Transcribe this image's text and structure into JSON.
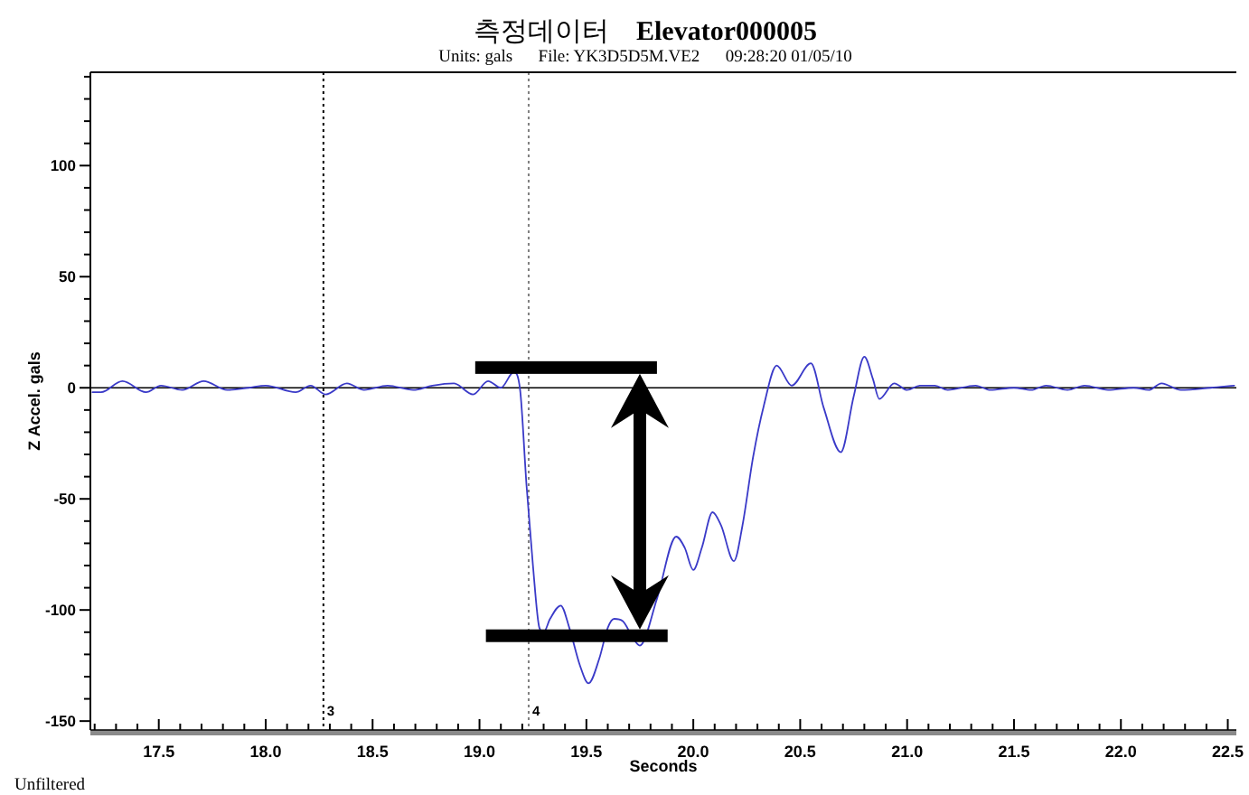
{
  "chart_data": {
    "type": "line",
    "title": "측정데이터    Elevator000005",
    "subtitle": "Units: gals      File: YK3D5D5M.VE2      09:28:20 01/05/10",
    "xlabel": "Seconds",
    "ylabel": "Z Accel. gals",
    "annotations": [
      "Unfiltered",
      {
        "text": "3",
        "x": 18.27,
        "y": -145
      },
      {
        "text": "4",
        "x": 19.23,
        "y": -145
      }
    ],
    "x": [
      17.19,
      17.23,
      17.33,
      17.44,
      17.51,
      17.61,
      17.71,
      17.82,
      17.92,
      18.0,
      18.14,
      18.21,
      18.28,
      18.38,
      18.46,
      18.57,
      18.69,
      18.78,
      18.88,
      18.97,
      19.04,
      19.1,
      19.16,
      19.19,
      19.22,
      19.25,
      19.28,
      19.3,
      19.33,
      19.38,
      19.42,
      19.47,
      19.51,
      19.56,
      19.6,
      19.63,
      19.67,
      19.72,
      19.75,
      19.83,
      19.92,
      19.96,
      20.0,
      20.04,
      20.09,
      20.13,
      20.19,
      20.23,
      20.28,
      20.33,
      20.39,
      20.46,
      20.55,
      20.61,
      20.69,
      20.75,
      20.8,
      20.84,
      20.87,
      20.94,
      21.0,
      21.06,
      21.13,
      21.19,
      21.32,
      21.39,
      21.5,
      21.58,
      21.65,
      21.75,
      21.83,
      21.94,
      22.06,
      22.13,
      22.19,
      22.28,
      22.42,
      22.53
    ],
    "series": [
      {
        "color": "#3a3ac8",
        "values": [
          -2,
          -2,
          3,
          -2,
          1,
          -1,
          3,
          -1,
          0,
          1,
          -2,
          1,
          -3,
          2,
          -1,
          1,
          -1,
          1,
          2,
          -3,
          3,
          0,
          7,
          -1,
          -44,
          -80,
          -108,
          -110,
          -104,
          -98,
          -108,
          -125,
          -133,
          -122,
          -108,
          -104,
          -105,
          -113,
          -116,
          -95,
          -67,
          -72,
          -82,
          -72,
          -56,
          -62,
          -78,
          -62,
          -31,
          -8,
          10,
          1,
          11,
          -9,
          -29,
          -4,
          14,
          4,
          -5,
          2,
          -1,
          1,
          1,
          -1,
          1,
          -1,
          0,
          -1,
          1,
          -1,
          1,
          -1,
          0,
          -1,
          2,
          -1,
          0,
          1
        ]
      }
    ],
    "xlim": [
      17.18,
      22.54
    ],
    "ylim": [
      -154,
      142
    ],
    "xticks": [
      {
        "value": 17.2,
        "label": null
      },
      {
        "value": 17.3,
        "label": null
      },
      {
        "value": 17.4,
        "label": null
      },
      17.5,
      {
        "value": 17.6,
        "label": null
      },
      {
        "value": 17.7,
        "label": null
      },
      {
        "value": 17.8,
        "label": null
      },
      {
        "value": 17.9,
        "label": null
      },
      {
        "value": 18,
        "label": "18.0"
      },
      {
        "value": 18.1,
        "label": null
      },
      {
        "value": 18.2,
        "label": null
      },
      {
        "value": 18.3,
        "label": null
      },
      {
        "value": 18.4,
        "label": null
      },
      18.5,
      {
        "value": 18.6,
        "label": null
      },
      {
        "value": 18.7,
        "label": null
      },
      {
        "value": 18.8,
        "label": null
      },
      {
        "value": 18.9,
        "label": null
      },
      {
        "value": 19,
        "label": "19.0"
      },
      {
        "value": 19.1,
        "label": null
      },
      {
        "value": 19.2,
        "label": null
      },
      {
        "value": 19.3,
        "label": null
      },
      {
        "value": 19.4,
        "label": null
      },
      19.5,
      {
        "value": 19.6,
        "label": null
      },
      {
        "value": 19.7,
        "label": null
      },
      {
        "value": 19.8,
        "label": null
      },
      {
        "value": 19.9,
        "label": null
      },
      {
        "value": 20,
        "label": "20.0"
      },
      {
        "value": 20.1,
        "label": null
      },
      {
        "value": 20.2,
        "label": null
      },
      {
        "value": 20.3,
        "label": null
      },
      {
        "value": 20.4,
        "label": null
      },
      20.5,
      {
        "value": 20.6,
        "label": null
      },
      {
        "value": 20.7,
        "label": null
      },
      {
        "value": 20.8,
        "label": null
      },
      {
        "value": 20.9,
        "label": null
      },
      {
        "value": 21,
        "label": "21.0"
      },
      {
        "value": 21.1,
        "label": null
      },
      {
        "value": 21.2,
        "label": null
      },
      {
        "value": 21.3,
        "label": null
      },
      {
        "value": 21.4,
        "label": null
      },
      21.5,
      {
        "value": 21.6,
        "label": null
      },
      {
        "value": 21.7,
        "label": null
      },
      {
        "value": 21.8,
        "label": null
      },
      {
        "value": 21.9,
        "label": null
      },
      {
        "value": 22,
        "label": "22.0"
      },
      {
        "value": 22.1,
        "label": null
      },
      {
        "value": 22.2,
        "label": null
      },
      {
        "value": 22.3,
        "label": null
      },
      {
        "value": 22.4,
        "label": null
      },
      22.5
    ],
    "yticks": [
      -150,
      {
        "value": -140,
        "label": null
      },
      {
        "value": -130,
        "label": null
      },
      {
        "value": -120,
        "label": null
      },
      {
        "value": -110,
        "label": null
      },
      -100,
      {
        "value": -90,
        "label": null
      },
      {
        "value": -80,
        "label": null
      },
      {
        "value": -70,
        "label": null
      },
      {
        "value": -60,
        "label": null
      },
      -50,
      {
        "value": -40,
        "label": null
      },
      {
        "value": -30,
        "label": null
      },
      {
        "value": -20,
        "label": null
      },
      {
        "value": -10,
        "label": null
      },
      0,
      {
        "value": 10,
        "label": null
      },
      {
        "value": 20,
        "label": null
      },
      {
        "value": 30,
        "label": null
      },
      {
        "value": 40,
        "label": null
      },
      50,
      {
        "value": 60,
        "label": null
      },
      {
        "value": 70,
        "label": null
      },
      {
        "value": 80,
        "label": null
      },
      {
        "value": 90,
        "label": null
      },
      100,
      {
        "value": 110,
        "label": null
      },
      {
        "value": 120,
        "label": null
      },
      {
        "value": 130,
        "label": null
      },
      {
        "value": 140,
        "label": null
      }
    ],
    "ref_lines": [
      {
        "axis": "x",
        "value": 18.27,
        "line_style": "dotted",
        "color": "#000000"
      },
      {
        "axis": "x",
        "value": 19.23,
        "line_style": "dotted",
        "color": "#808080"
      },
      {
        "axis": "y",
        "value": 0,
        "line_style": "solid",
        "color": "#000000"
      }
    ],
    "line_style": "solid"
  }
}
